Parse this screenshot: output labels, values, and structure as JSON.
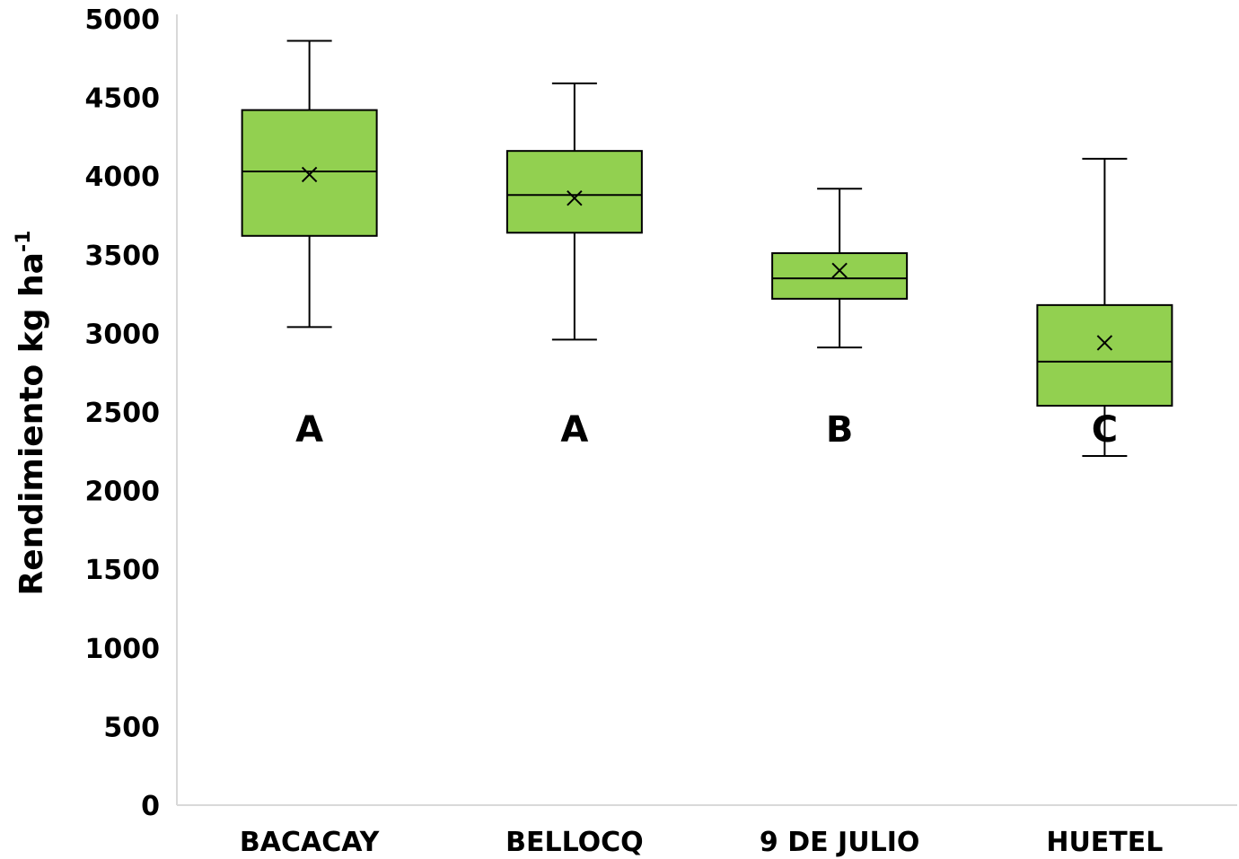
{
  "chart_data": {
    "type": "boxplot",
    "ylabel": "Rendimiento kg ha",
    "ylabel_sup": "-1",
    "ylim": [
      0,
      5000
    ],
    "yticks": [
      0,
      500,
      1000,
      1500,
      2000,
      2500,
      3000,
      3500,
      4000,
      4500,
      5000
    ],
    "grid": false,
    "box_color": "#92d050",
    "categories": [
      "BACACAY",
      "BELLOCQ",
      "9 DE JULIO",
      "HUETEL"
    ],
    "boxes": [
      {
        "min": 3040,
        "q1": 3620,
        "median": 4030,
        "q3": 4420,
        "max": 4860,
        "mean": 4010,
        "group": "A"
      },
      {
        "min": 2960,
        "q1": 3640,
        "median": 3880,
        "q3": 4160,
        "max": 4590,
        "mean": 3860,
        "group": "A"
      },
      {
        "min": 2910,
        "q1": 3220,
        "median": 3350,
        "q3": 3510,
        "max": 3920,
        "mean": 3400,
        "group": "B"
      },
      {
        "min": 2220,
        "q1": 2540,
        "median": 2820,
        "q3": 3180,
        "max": 4110,
        "mean": 2940,
        "group": "C"
      }
    ]
  }
}
